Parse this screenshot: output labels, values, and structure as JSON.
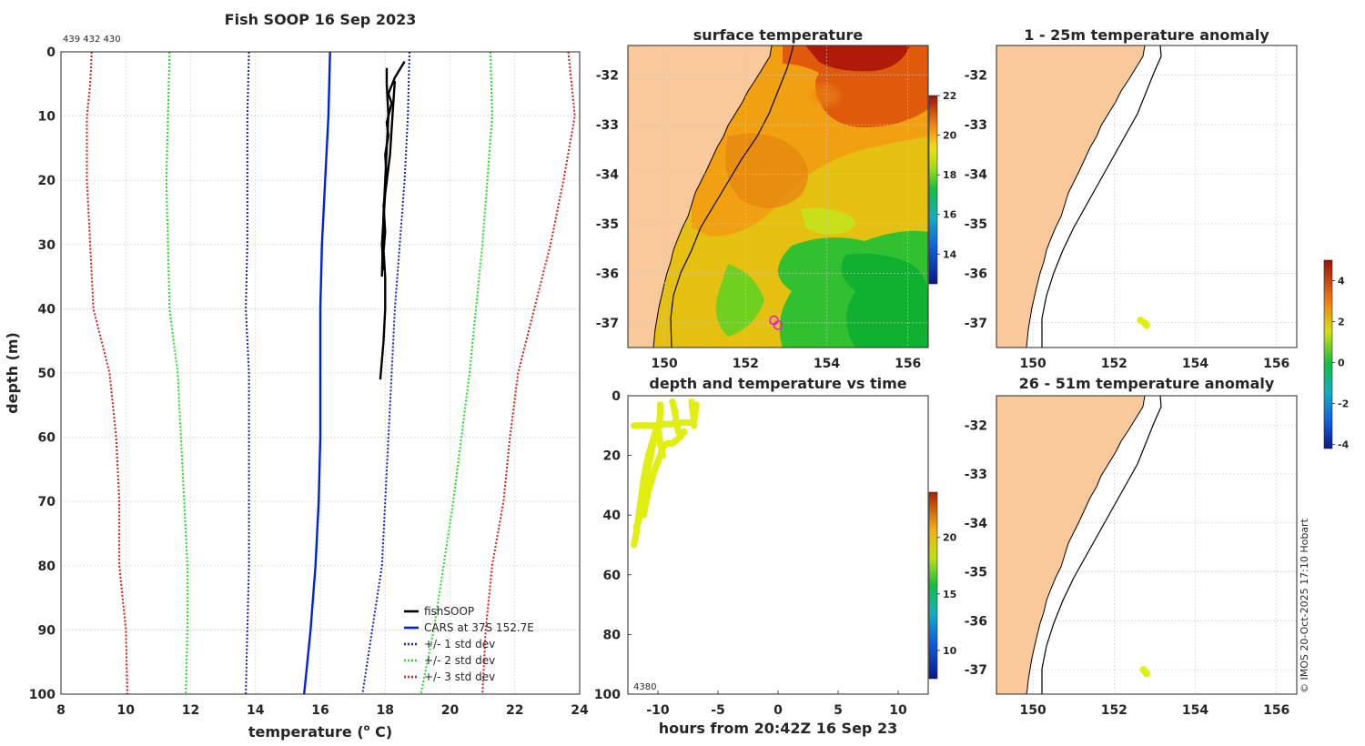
{
  "colors": {
    "land": "#f9c89b",
    "coast": "#000000",
    "grid": "#c8c8c8",
    "fishsoop": "#000000",
    "cars": "#0022dd",
    "std1": "#1a1adc",
    "std2": "#22dd22",
    "std3": "#dd1a1a",
    "marker": "#e0ee10"
  },
  "panels": {
    "profile": {
      "title": "Fish SOOP 16 Sep 2023",
      "ids": "439 432 430",
      "xlabel": "temperature (°C)",
      "xlabel_main": "temperature (",
      "xlabel_sup": "o",
      "xlabel_end": " C)",
      "ylabel": "depth (m)"
    },
    "sst": {
      "title": "surface temperature"
    },
    "anom1": {
      "title": "1 - 25m temperature anomaly"
    },
    "anom2": {
      "title": "26 - 51m temperature anomaly"
    },
    "depthtime": {
      "title": "depth and temperature vs time",
      "xlabel": "hours from 20:42Z 16 Sep 23",
      "ids": "4380"
    }
  },
  "credit": "© IMOS 20-Oct-2025 17:10 Hobart",
  "chart_data": [
    {
      "id": "profile",
      "type": "line",
      "title": "Fish SOOP 16 Sep 2023",
      "xlabel": "temperature (°C)",
      "ylabel": "depth (m)",
      "xlim": [
        8,
        24
      ],
      "ylim": [
        0,
        100
      ],
      "y_reversed": true,
      "xticks": [
        8,
        10,
        12,
        14,
        16,
        18,
        20,
        22,
        24
      ],
      "yticks": [
        0,
        10,
        20,
        30,
        40,
        50,
        60,
        70,
        80,
        90,
        100
      ],
      "legend_position": "bottom-right",
      "series": [
        {
          "name": "fishSOOP",
          "style": "solid",
          "color": "#000000",
          "points": [
            [
              18.6,
              1.5
            ],
            [
              18.3,
              4
            ],
            [
              18.1,
              6.5
            ],
            [
              18.2,
              8
            ],
            [
              18.1,
              10
            ],
            [
              18.05,
              11
            ],
            [
              18.1,
              13
            ],
            [
              18.0,
              16
            ],
            [
              18.05,
              20
            ],
            [
              17.95,
              24
            ],
            [
              18.0,
              28
            ],
            [
              17.95,
              31
            ],
            [
              18.0,
              35
            ],
            [
              18.0,
              40
            ],
            [
              17.95,
              45
            ],
            [
              17.9,
              48
            ],
            [
              17.85,
              51
            ]
          ]
        },
        {
          "name": "fishSOOP",
          "style": "solid",
          "color": "#000000",
          "points": [
            [
              18.05,
              2.5
            ],
            [
              18.05,
              5
            ],
            [
              18.1,
              10
            ],
            [
              18.05,
              15
            ],
            [
              18.0,
              20
            ],
            [
              17.95,
              25
            ],
            [
              17.9,
              35
            ]
          ]
        },
        {
          "name": "fishSOOP",
          "style": "solid",
          "color": "#000000",
          "points": [
            [
              18.3,
              4.5
            ],
            [
              18.25,
              8
            ],
            [
              18.2,
              12
            ],
            [
              18.15,
              16
            ],
            [
              18.0,
              22
            ],
            [
              17.9,
              30
            ],
            [
              17.95,
              34
            ]
          ]
        },
        {
          "name": "CARS at 37S 152.7E",
          "style": "solid",
          "color": "#0022dd",
          "points": [
            [
              16.3,
              0
            ],
            [
              16.25,
              10
            ],
            [
              16.15,
              20
            ],
            [
              16.05,
              30
            ],
            [
              16.0,
              40
            ],
            [
              16.0,
              50
            ],
            [
              16.0,
              60
            ],
            [
              15.95,
              70
            ],
            [
              15.85,
              80
            ],
            [
              15.7,
              90
            ],
            [
              15.5,
              100
            ]
          ]
        },
        {
          "name": "+/- 1 std dev",
          "style": "dotted",
          "color": "#1a1adc",
          "points": [
            [
              13.8,
              0
            ],
            [
              13.75,
              10
            ],
            [
              13.75,
              20
            ],
            [
              13.75,
              30
            ],
            [
              13.7,
              40
            ],
            [
              13.8,
              50
            ],
            [
              13.8,
              60
            ],
            [
              13.8,
              70
            ],
            [
              13.8,
              80
            ],
            [
              13.75,
              90
            ],
            [
              13.7,
              100
            ]
          ]
        },
        {
          "name": "+/- 1 std dev",
          "style": "dotted",
          "color": "#1a1adc",
          "points": [
            [
              18.75,
              0
            ],
            [
              18.7,
              10
            ],
            [
              18.6,
              20
            ],
            [
              18.45,
              30
            ],
            [
              18.3,
              40
            ],
            [
              18.2,
              50
            ],
            [
              18.1,
              60
            ],
            [
              18.0,
              70
            ],
            [
              17.9,
              80
            ],
            [
              17.6,
              90
            ],
            [
              17.3,
              100
            ]
          ]
        },
        {
          "name": "+/- 2 std dev",
          "style": "dotted",
          "color": "#22dd22",
          "points": [
            [
              11.35,
              0
            ],
            [
              11.3,
              10
            ],
            [
              11.25,
              20
            ],
            [
              11.3,
              30
            ],
            [
              11.35,
              40
            ],
            [
              11.6,
              50
            ],
            [
              11.7,
              60
            ],
            [
              11.8,
              70
            ],
            [
              11.9,
              80
            ],
            [
              11.9,
              90
            ],
            [
              11.85,
              100
            ]
          ]
        },
        {
          "name": "+/- 2 std dev",
          "style": "dotted",
          "color": "#22dd22",
          "points": [
            [
              21.25,
              0
            ],
            [
              21.3,
              10
            ],
            [
              21.15,
              20
            ],
            [
              21.0,
              30
            ],
            [
              20.8,
              40
            ],
            [
              20.6,
              50
            ],
            [
              20.35,
              60
            ],
            [
              20.1,
              70
            ],
            [
              19.8,
              80
            ],
            [
              19.5,
              90
            ],
            [
              19.1,
              100
            ]
          ]
        },
        {
          "name": "+/- 3 std dev",
          "style": "dotted",
          "color": "#dd1a1a",
          "points": [
            [
              8.95,
              0
            ],
            [
              8.9,
              5
            ],
            [
              8.8,
              10
            ],
            [
              8.8,
              20
            ],
            [
              8.9,
              30
            ],
            [
              9.0,
              40
            ],
            [
              9.5,
              50
            ],
            [
              9.7,
              60
            ],
            [
              9.8,
              70
            ],
            [
              9.8,
              80
            ],
            [
              10.0,
              90
            ],
            [
              10.05,
              100
            ]
          ]
        },
        {
          "name": "+/- 3 std dev",
          "style": "dotted",
          "color": "#dd1a1a",
          "points": [
            [
              23.65,
              0
            ],
            [
              23.75,
              5
            ],
            [
              23.85,
              10
            ],
            [
              23.5,
              20
            ],
            [
              23.1,
              30
            ],
            [
              22.6,
              40
            ],
            [
              22.1,
              50
            ],
            [
              21.85,
              60
            ],
            [
              21.65,
              70
            ],
            [
              21.3,
              80
            ],
            [
              21.1,
              90
            ],
            [
              21.0,
              100
            ]
          ]
        }
      ],
      "legend": [
        {
          "label": "fishSOOP",
          "color": "#000000",
          "style": "solid"
        },
        {
          "label": "CARS at 37S 152.7E",
          "color": "#0022dd",
          "style": "solid"
        },
        {
          "label": "+/- 1 std dev",
          "color": "#1a1adc",
          "style": "dotted"
        },
        {
          "label": "+/- 2 std dev",
          "color": "#22dd22",
          "style": "dotted"
        },
        {
          "label": "+/- 3 std dev",
          "color": "#dd1a1a",
          "style": "dotted"
        }
      ]
    },
    {
      "id": "sst",
      "type": "heatmap",
      "title": "surface temperature",
      "xlim": [
        149.1,
        156.5
      ],
      "ylim": [
        -37.5,
        -31.4
      ],
      "xticks": [
        150,
        152,
        154,
        156
      ],
      "yticks": [
        -37,
        -36,
        -35,
        -34,
        -33,
        -32
      ],
      "colorbar": {
        "min": 12.5,
        "max": 22,
        "ticks": [
          14,
          16,
          18,
          20,
          22
        ]
      },
      "markers": [
        [
          152.7,
          -36.95
        ],
        [
          152.8,
          -37.05
        ]
      ]
    },
    {
      "id": "anom1",
      "type": "scatter",
      "title": "1 - 25m temperature anomaly",
      "xlim": [
        149.1,
        156.5
      ],
      "ylim": [
        -37.5,
        -31.4
      ],
      "xticks": [
        150,
        152,
        154,
        156
      ],
      "yticks": [
        -37,
        -36,
        -35,
        -34,
        -33,
        -32
      ],
      "points": [
        [
          152.65,
          -36.95
        ],
        [
          152.75,
          -37.0
        ],
        [
          152.8,
          -37.05
        ]
      ]
    },
    {
      "id": "anom2",
      "type": "scatter",
      "title": "26 - 51m temperature anomaly",
      "xlim": [
        149.1,
        156.5
      ],
      "ylim": [
        -37.5,
        -31.4
      ],
      "xticks": [
        150,
        152,
        154,
        156
      ],
      "yticks": [
        -37,
        -36,
        -35,
        -34,
        -33,
        -32
      ],
      "points": [
        [
          152.72,
          -37.0
        ],
        [
          152.78,
          -37.05
        ],
        [
          152.8,
          -37.08
        ]
      ]
    },
    {
      "id": "anom-colorbar",
      "type": "heatmap",
      "colorbar": {
        "min": -4.2,
        "max": 5,
        "ticks": [
          -4,
          -2,
          0,
          2,
          4
        ]
      }
    },
    {
      "id": "depthtime",
      "type": "scatter",
      "title": "depth and temperature vs time",
      "xlabel": "hours from 20:42Z 16 Sep 23",
      "xlim": [
        -12.5,
        12.5
      ],
      "ylim": [
        0,
        100
      ],
      "y_reversed": true,
      "xticks": [
        -10,
        -5,
        0,
        5,
        10
      ],
      "yticks": [
        0,
        20,
        40,
        60,
        80,
        100
      ],
      "colorbar": {
        "min": 7.5,
        "max": 24,
        "ticks": [
          10,
          15,
          20
        ]
      },
      "casts": [
        {
          "time": [
            -12.0,
            -11.5,
            -11.0,
            -10.0,
            -9.5,
            -9.0,
            -8.5,
            -8.0,
            -7.5,
            -7.0,
            -6.8
          ],
          "depth": [
            10,
            10,
            10,
            10,
            9.5,
            9.5,
            9.5,
            9.0,
            9.0,
            9.0,
            3
          ]
        },
        {
          "time": [
            -12.0,
            -11.8,
            -11.6,
            -11.4,
            -11.2,
            -11.0,
            -10.8,
            -10.5,
            -10.2,
            -10.0
          ],
          "depth": [
            50,
            46,
            40,
            34,
            28,
            24,
            20,
            16,
            12,
            10
          ]
        },
        {
          "time": [
            -11.2,
            -11.0,
            -10.8,
            -10.5,
            -10.2,
            -10.0,
            -9.8,
            -9.6,
            -9.2,
            -8.8,
            -8.5,
            -8.2,
            -8.0,
            -7.8
          ],
          "depth": [
            40,
            36,
            32,
            28,
            24,
            22,
            20,
            17,
            16,
            16,
            15,
            14,
            13,
            12
          ]
        },
        {
          "time": [
            -11.8,
            -11.6,
            -11.4,
            -11.2,
            -11.0,
            -10.8,
            -10.6,
            -10.4,
            -10.2
          ],
          "depth": [
            44,
            42,
            38,
            34,
            28,
            24,
            20,
            16,
            12
          ]
        },
        {
          "time": [
            -9.8,
            -9.8,
            -9.9,
            -10.0,
            -9.8,
            -9.6
          ],
          "depth": [
            3,
            6,
            9,
            10,
            16,
            20
          ]
        },
        {
          "time": [
            -8.8,
            -8.6,
            -8.5,
            -8.4,
            -8.3
          ],
          "depth": [
            2,
            5,
            8,
            10,
            12
          ]
        },
        {
          "time": [
            -7.2,
            -7.1,
            -7.0,
            -7.0
          ],
          "depth": [
            2,
            5,
            8,
            10
          ]
        }
      ]
    }
  ]
}
